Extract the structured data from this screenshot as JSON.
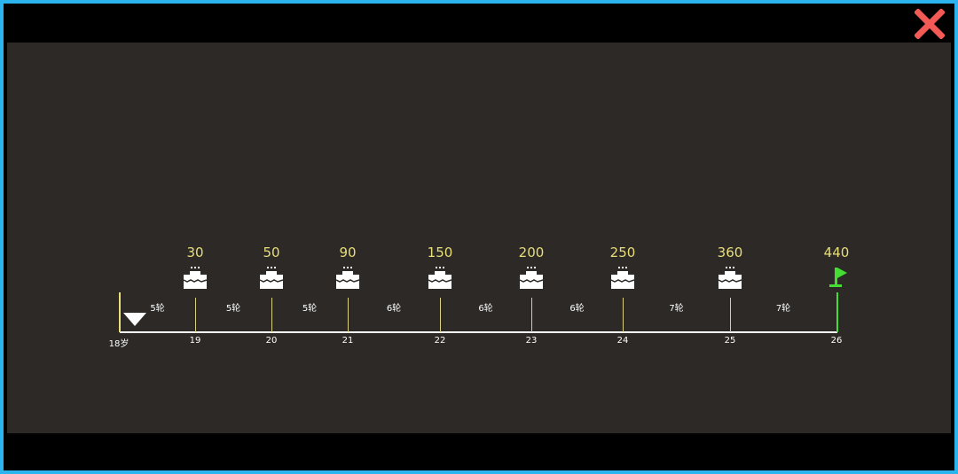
{
  "close_icon": "close-icon",
  "colors": {
    "border": "#2bb4ee",
    "panel": "#2c2927",
    "value": "#e8de7a",
    "goal": "#44dd33",
    "close": "#f45a55"
  },
  "timeline": {
    "start_label": "18岁",
    "current_marker": "triangle-down-icon",
    "milestones": [
      {
        "age": "19",
        "reward": "30",
        "icon": "cake-icon"
      },
      {
        "age": "20",
        "reward": "50",
        "icon": "cake-icon"
      },
      {
        "age": "21",
        "reward": "90",
        "icon": "cake-icon"
      },
      {
        "age": "22",
        "reward": "150",
        "icon": "cake-icon"
      },
      {
        "age": "23",
        "reward": "200",
        "icon": "cake-icon"
      },
      {
        "age": "24",
        "reward": "250",
        "icon": "cake-icon"
      },
      {
        "age": "25",
        "reward": "360",
        "icon": "cake-icon"
      },
      {
        "age": "26",
        "reward": "440",
        "icon": "flag-icon"
      }
    ],
    "rounds": [
      "5轮",
      "5轮",
      "5轮",
      "6轮",
      "6轮",
      "6轮",
      "7轮",
      "7轮"
    ]
  }
}
